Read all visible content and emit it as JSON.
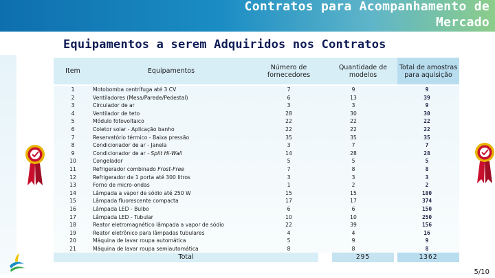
{
  "header": {
    "title_line1": "Contratos para Acompanhamento de",
    "title_line2": "Mercado",
    "brand_colors": [
      "#0e6fae",
      "#1b8dc4",
      "#8ccd8a"
    ]
  },
  "subtitle": "Equipamentos a serem Adquiridos nos Contratos",
  "table": {
    "columns": {
      "item": "Item",
      "equipamentos": "Equipamentos",
      "fornecedores": "Número de fornecedores",
      "quantidade": "Quantidade de modelos",
      "total": "Total de amostras para aquisição"
    },
    "rows": [
      {
        "item": "1",
        "equip": "Motobomba centrífuga até 3 CV",
        "forn": "7",
        "qtd": "9",
        "tot": "9"
      },
      {
        "item": "2",
        "equip": "Ventiladores (Mesa/Parede/Pedestal)",
        "forn": "6",
        "qtd": "13",
        "tot": "39"
      },
      {
        "item": "3",
        "equip": "Circulador de ar",
        "forn": "3",
        "qtd": "3",
        "tot": "9"
      },
      {
        "item": "4",
        "equip": "Ventilador de teto",
        "forn": "28",
        "qtd": "30",
        "tot": "30"
      },
      {
        "item": "5",
        "equip": "Módulo fotovoltaico",
        "forn": "22",
        "qtd": "22",
        "tot": "22"
      },
      {
        "item": "6",
        "equip": "Coletor solar - Aplicação banho",
        "forn": "22",
        "qtd": "22",
        "tot": "22"
      },
      {
        "item": "7",
        "equip": "Reservatório térmico - Baixa pressão",
        "forn": "35",
        "qtd": "35",
        "tot": "35"
      },
      {
        "item": "8",
        "equip": "Condicionador de ar - Janela",
        "forn": "3",
        "qtd": "7",
        "tot": "7"
      },
      {
        "item": "9",
        "equip_main": "Condicionador de ar - ",
        "equip_italic": "Split Hi-Wall",
        "forn": "14",
        "qtd": "28",
        "tot": "28"
      },
      {
        "item": "10",
        "equip": "Congelador",
        "forn": "5",
        "qtd": "5",
        "tot": "5"
      },
      {
        "item": "11",
        "equip_main": "Refrigerador combinado ",
        "equip_italic": "Frost-Free",
        "forn": "7",
        "qtd": "8",
        "tot": "8"
      },
      {
        "item": "12",
        "equip": "Refrigerador de 1 porta até 300 litros",
        "forn": "3",
        "qtd": "3",
        "tot": "3"
      },
      {
        "item": "13",
        "equip": "Forno de micro-ondas",
        "forn": "1",
        "qtd": "2",
        "tot": "2"
      },
      {
        "item": "14",
        "equip": "Lâmpada a vapor de sódio até 250 W",
        "forn": "15",
        "qtd": "15",
        "tot": "180"
      },
      {
        "item": "15",
        "equip": "Lâmpada fluorescente compacta",
        "forn": "17",
        "qtd": "17",
        "tot": "374"
      },
      {
        "item": "16",
        "equip": "Lâmpada LED - Bulbo",
        "forn": "6",
        "qtd": "6",
        "tot": "150"
      },
      {
        "item": "17",
        "equip": "Lâmpada LED - Tubular",
        "forn": "10",
        "qtd": "10",
        "tot": "250"
      },
      {
        "item": "18",
        "equip": "Reator eletromagnético lâmpada a vapor de sódio",
        "forn": "22",
        "qtd": "39",
        "tot": "156"
      },
      {
        "item": "19",
        "equip": "Reator eletrônico para lâmpadas tubulares",
        "forn": "4",
        "qtd": "4",
        "tot": "16"
      },
      {
        "item": "20",
        "equip": "Máquina de lavar roupa automática",
        "forn": "5",
        "qtd": "9",
        "tot": "9"
      },
      {
        "item": "21",
        "equip": "Máquina de lavar roupa semiautomática",
        "forn": "8",
        "qtd": "8",
        "tot": "8"
      }
    ],
    "total": {
      "label": "Total",
      "qtd": "295",
      "tot": "1362"
    }
  },
  "page": "5/10",
  "icons": [
    "procel-seal-icon",
    "procel-seal-icon",
    "brand-logo-icon"
  ]
}
